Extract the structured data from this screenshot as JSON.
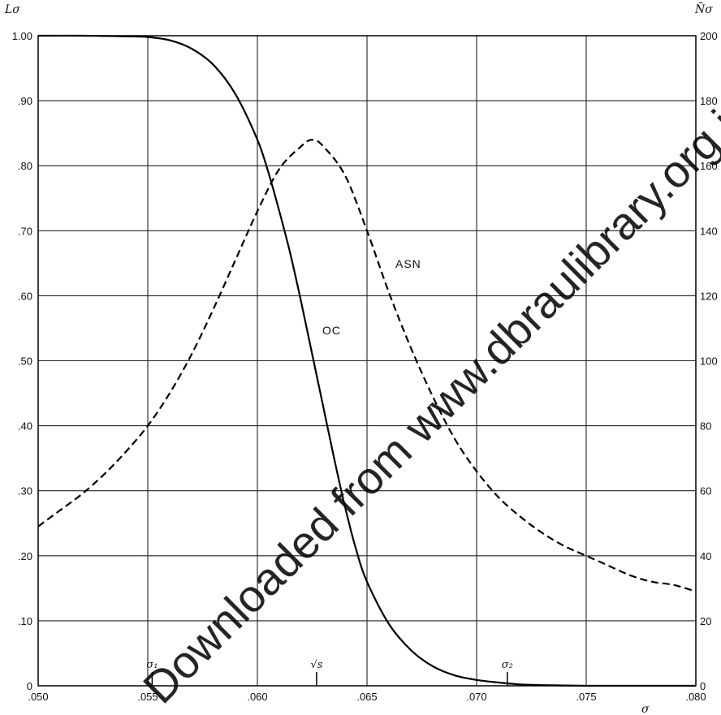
{
  "chart_data": {
    "type": "line",
    "xlabel": "σ",
    "ylabel_left": "Lσ",
    "ylabel_right": "N̄σ",
    "xlim": [
      0.05,
      0.08
    ],
    "ylim_left": [
      0,
      1.0
    ],
    "ylim_right": [
      0,
      200
    ],
    "grid": true,
    "x_tick_labels": [
      ".050",
      ".055",
      ".060",
      ".065",
      ".070",
      ".075",
      ".080"
    ],
    "x_ticks": [
      0.05,
      0.055,
      0.06,
      0.065,
      0.07,
      0.075,
      0.08
    ],
    "y_left_tick_labels": [
      "0",
      ".10",
      ".20",
      ".30",
      ".40",
      ".50",
      ".60",
      ".70",
      ".80",
      ".90",
      "1.00"
    ],
    "y_left_ticks": [
      0,
      0.1,
      0.2,
      0.3,
      0.4,
      0.5,
      0.6,
      0.7,
      0.8,
      0.9,
      1.0
    ],
    "y_right_tick_labels": [
      "0",
      "20",
      "40",
      "60",
      "80",
      "100",
      "120",
      "140",
      "160",
      "180",
      "200"
    ],
    "y_right_ticks": [
      0,
      20,
      40,
      60,
      80,
      100,
      120,
      140,
      160,
      180,
      200
    ],
    "series": [
      {
        "name": "OC",
        "axis": "left",
        "style": "solid",
        "x": [
          0.05,
          0.052,
          0.054,
          0.055,
          0.056,
          0.057,
          0.058,
          0.059,
          0.06,
          0.0605,
          0.061,
          0.0615,
          0.062,
          0.0625,
          0.063,
          0.0635,
          0.064,
          0.0645,
          0.065,
          0.066,
          0.067,
          0.068,
          0.069,
          0.07,
          0.071,
          0.072,
          0.073,
          0.074,
          0.075,
          0.076,
          0.078,
          0.08
        ],
        "y": [
          1.0,
          1.0,
          0.999,
          0.998,
          0.993,
          0.98,
          0.955,
          0.91,
          0.84,
          0.79,
          0.73,
          0.665,
          0.59,
          0.51,
          0.43,
          0.35,
          0.275,
          0.21,
          0.16,
          0.095,
          0.055,
          0.03,
          0.016,
          0.009,
          0.005,
          0.002,
          0.001,
          0.0005,
          0.0,
          0.0,
          0.0,
          0.0
        ]
      },
      {
        "name": "ASN",
        "axis": "right",
        "style": "dashed",
        "x": [
          0.05,
          0.051,
          0.052,
          0.053,
          0.054,
          0.055,
          0.056,
          0.057,
          0.058,
          0.059,
          0.06,
          0.061,
          0.062,
          0.0625,
          0.063,
          0.064,
          0.065,
          0.066,
          0.067,
          0.068,
          0.069,
          0.07,
          0.071,
          0.072,
          0.073,
          0.074,
          0.075,
          0.076,
          0.077,
          0.078,
          0.079,
          0.08
        ],
        "y": [
          49,
          54,
          59,
          65,
          72,
          80,
          90,
          102,
          116,
          131,
          146,
          159,
          166,
          168,
          166,
          157,
          140,
          121,
          104,
          89,
          76,
          66,
          58,
          52,
          47,
          43,
          40,
          37,
          34,
          32,
          31,
          29
        ]
      }
    ],
    "annotations": [
      {
        "text": "OC",
        "series": "OC"
      },
      {
        "text": "ASN",
        "series": "ASN"
      }
    ],
    "markers": [
      {
        "label": "σ₁",
        "x": 0.0552
      },
      {
        "label": "√s",
        "x": 0.0627
      },
      {
        "label": "σ₂",
        "x": 0.0714
      }
    ]
  },
  "watermark": "Downloaded from www.dbraulibrary.org.in"
}
